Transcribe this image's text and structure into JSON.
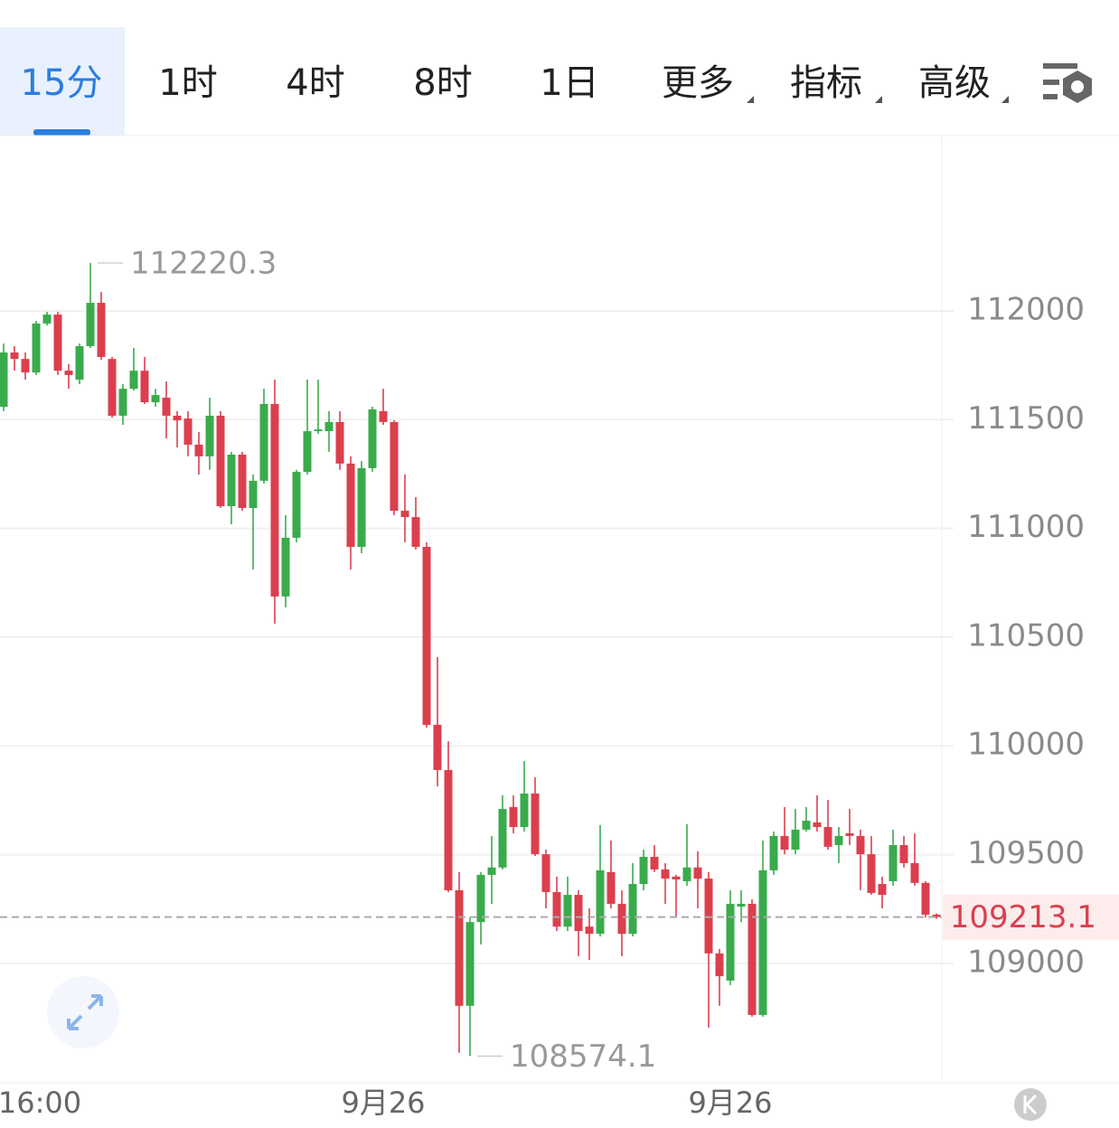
{
  "toolbar": {
    "tabs": [
      "15分",
      "1时",
      "4时",
      "8时",
      "1日",
      "更多",
      "指标",
      "高级"
    ],
    "active": 0
  },
  "chart_data": {
    "type": "candlestick",
    "categories": [
      null,
      null,
      null,
      "16:00",
      null,
      null,
      null,
      null,
      null,
      null,
      null,
      null,
      null,
      null,
      null,
      null,
      null,
      null,
      null,
      null,
      null,
      null,
      null,
      null,
      null,
      null,
      null,
      null,
      null,
      null,
      null,
      null,
      null,
      null,
      null,
      "9月26",
      null,
      null,
      null,
      null,
      null,
      null,
      null,
      null,
      null,
      null,
      null,
      null,
      null,
      null,
      null,
      null,
      null,
      null,
      null,
      null,
      null,
      null,
      null,
      null,
      null,
      null,
      null,
      null,
      null,
      null,
      null,
      "9月26",
      null,
      null,
      null,
      null,
      null,
      null,
      null,
      null,
      null,
      null,
      null,
      null,
      null,
      null,
      null,
      null,
      null,
      null,
      null
    ],
    "open": [
      111559,
      111809,
      111779,
      111717,
      111942,
      111983,
      111725,
      111684,
      111838,
      112037,
      111779,
      111518,
      111642,
      111725,
      111580,
      111601,
      111518,
      111505,
      111385,
      111331,
      111518,
      111102,
      111339,
      111094,
      111219,
      111572,
      110687,
      110957,
      111260,
      111447,
      111447,
      111489,
      111298,
      110915,
      111277,
      111539,
      111489,
      111081,
      111052,
      110915,
      110097,
      109889,
      109336,
      108805,
      109190,
      109407,
      109441,
      109719,
      109627,
      109781,
      109502,
      109328,
      109169,
      109315,
      109169,
      109136,
      109420,
      109274,
      109136,
      109365,
      109490,
      109432,
      109399,
      109378,
      109441,
      109390,
      109046,
      108921,
      109261,
      109274,
      108763,
      109428,
      109586,
      109523,
      109615,
      109648,
      109627,
      109544,
      109598,
      109586,
      109502,
      109365,
      109378,
      109544,
      109461,
      109370,
      109224
    ],
    "high": [
      111850,
      111838,
      111809,
      111954,
      111996,
      111996,
      111755,
      111850,
      112220.3,
      112087,
      111788,
      111663,
      111829,
      111788,
      111642,
      111676,
      111539,
      111539,
      111443,
      111601,
      111539,
      111352,
      111352,
      111248,
      111642,
      111684,
      111061,
      111269,
      111684,
      111684,
      111539,
      111539,
      111331,
      111310,
      111559,
      111642,
      111497,
      111248,
      111144,
      110936,
      110408,
      110022,
      109420,
      109211,
      109420,
      109586,
      109773,
      109773,
      109930,
      109856,
      109523,
      109399,
      109399,
      109336,
      109253,
      109636,
      109565,
      109336,
      109461,
      109523,
      109544,
      109461,
      109407,
      109640,
      109515,
      109420,
      109066,
      109336,
      109336,
      109295,
      109565,
      109606,
      109719,
      109710,
      109719,
      109773,
      109752,
      109627,
      109710,
      109615,
      109586,
      109399,
      109615,
      109586,
      109598,
      109378,
      109230
    ],
    "low": [
      111539,
      111725,
      111684,
      111705,
      111933,
      111705,
      111642,
      111663,
      111829,
      111775,
      111509,
      111476,
      111634,
      111572,
      111559,
      111414,
      111372,
      111331,
      111248,
      111269,
      111094,
      111019,
      111081,
      110811,
      111206,
      110562,
      110637,
      110936,
      111248,
      111435,
      111352,
      111269,
      110811,
      110886,
      111260,
      111476,
      111061,
      110936,
      110903,
      110084,
      109814,
      109328,
      108589,
      108574.1,
      109087,
      109274,
      109432,
      109598,
      109606,
      109494,
      109253,
      109149,
      109149,
      109033,
      109016,
      109124,
      109253,
      109033,
      109124,
      109336,
      109420,
      109274,
      109211,
      109357,
      109253,
      108705,
      108805,
      108900,
      109190,
      108755,
      108755,
      109407,
      109502,
      109502,
      109606,
      109606,
      109523,
      109461,
      109544,
      109336,
      109315,
      109253,
      109357,
      109441,
      109357,
      109211,
      109205
    ],
    "close": [
      111809,
      111779,
      111717,
      111942,
      111983,
      111725,
      111705,
      111838,
      112037,
      111788,
      111518,
      111642,
      111725,
      111580,
      111613,
      111518,
      111497,
      111385,
      111331,
      111518,
      111102,
      111339,
      111094,
      111219,
      111572,
      110687,
      110957,
      111260,
      111447,
      111455,
      111489,
      111298,
      110915,
      111277,
      111547,
      111489,
      111081,
      111052,
      110915,
      110097,
      109889,
      109336,
      108805,
      109190,
      109407,
      109441,
      109710,
      109627,
      109781,
      109502,
      109328,
      109169,
      109315,
      109149,
      109136,
      109428,
      109274,
      109136,
      109365,
      109490,
      109432,
      109390,
      109386,
      109441,
      109390,
      109046,
      108941,
      109274,
      109274,
      108763,
      109428,
      109586,
      109523,
      109615,
      109656,
      109627,
      109536,
      109586,
      109586,
      109502,
      109324,
      109315,
      109544,
      109461,
      109370,
      109224,
      109213.1
    ],
    "up_color": "#3aab4c",
    "down_color": "#db3f4e",
    "ylim": [
      108451,
      112806
    ],
    "yticks": [
      109000,
      109500,
      110000,
      110500,
      111000,
      111500,
      112000
    ],
    "grid": true
  }
}
